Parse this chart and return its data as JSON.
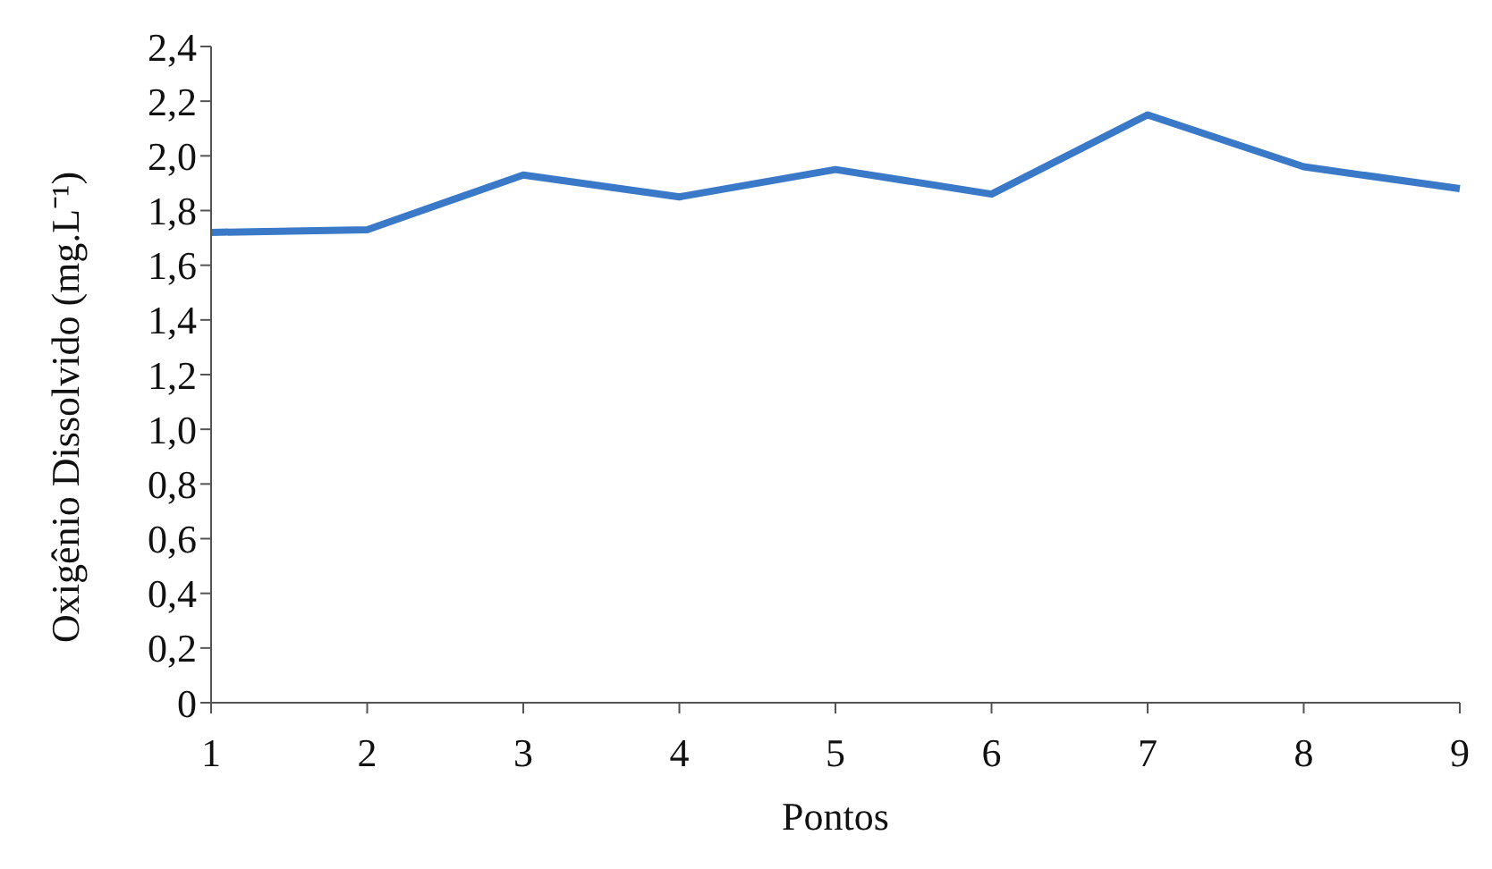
{
  "chart_data": {
    "type": "line",
    "xlabel": "Pontos",
    "ylabel": "Oxigênio Dissolvido (mg.L⁻¹)",
    "categories": [
      "1",
      "2",
      "3",
      "4",
      "5",
      "6",
      "7",
      "8",
      "9"
    ],
    "series": [
      {
        "color": "#3a78c8",
        "values": [
          1.72,
          1.73,
          1.93,
          1.85,
          1.95,
          1.86,
          2.15,
          1.96,
          1.88
        ]
      }
    ],
    "ylim": [
      0,
      2.4
    ],
    "yticks": [
      0,
      {
        "value": 0.2,
        "label": "0,2"
      },
      {
        "value": 0.4,
        "label": "0,4"
      },
      {
        "value": 0.6,
        "label": "0,6"
      },
      {
        "value": 0.8,
        "label": "0,8"
      },
      {
        "value": 1.0,
        "label": "1,0"
      },
      {
        "value": 1.2,
        "label": "1,2"
      },
      {
        "value": 1.4,
        "label": "1,4"
      },
      {
        "value": 1.6,
        "label": "1,6"
      },
      {
        "value": 1.8,
        "label": "1,8"
      },
      {
        "value": 2.0,
        "label": "2,0"
      },
      {
        "value": 2.2,
        "label": "2,2"
      },
      {
        "value": 2.4,
        "label": "2,4"
      }
    ],
    "grid": false,
    "legend": false,
    "marker": "none",
    "line_style": "solid"
  }
}
